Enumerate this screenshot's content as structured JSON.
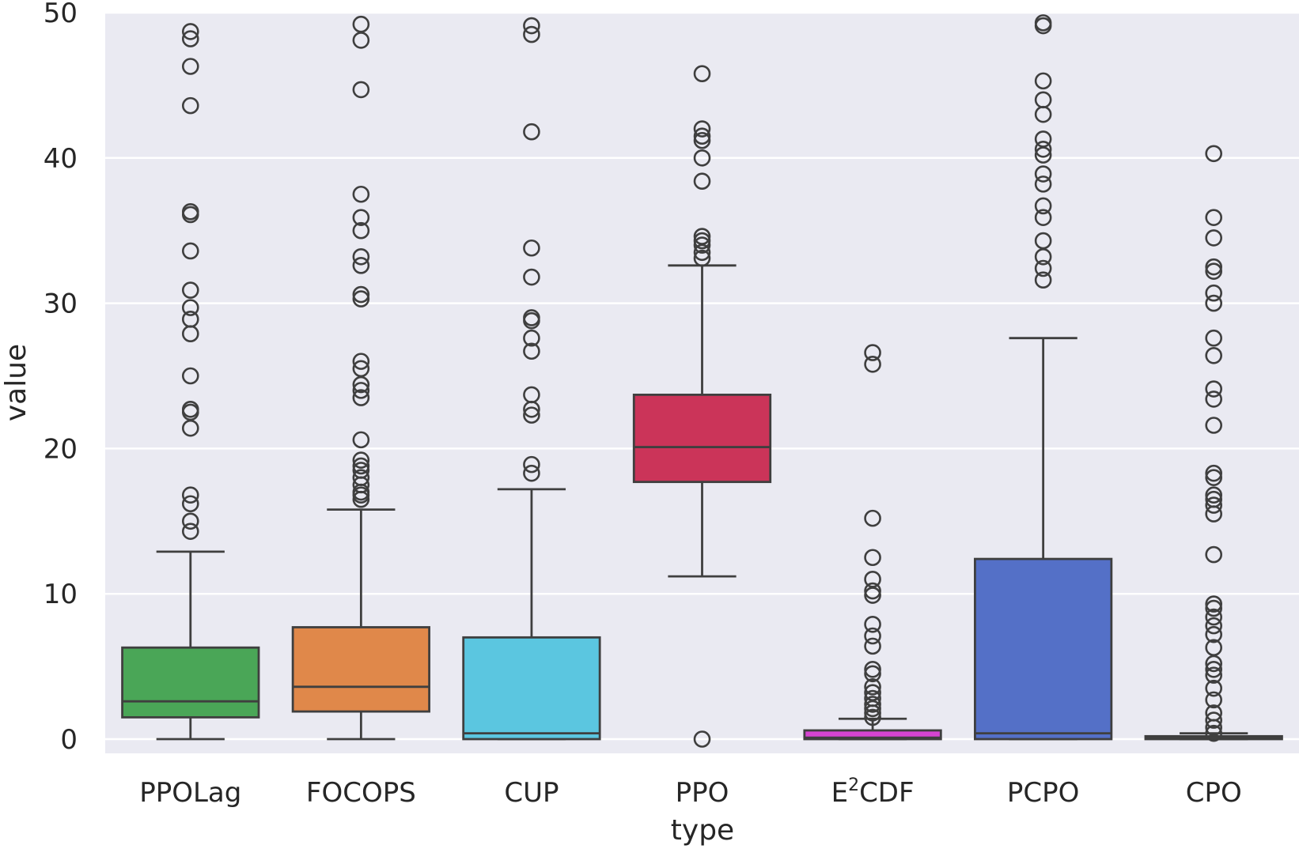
{
  "chart_data": {
    "type": "box",
    "xlabel": "type",
    "ylabel": "value",
    "ylim": [
      -1,
      50
    ],
    "yticks": [
      0,
      10,
      20,
      30,
      40,
      50
    ],
    "grid": true,
    "background": "#eaeaf2",
    "categories": [
      {
        "label": "PPOLag",
        "sup": "",
        "tail": ""
      },
      {
        "label": "FOCOPS",
        "sup": "",
        "tail": ""
      },
      {
        "label": "CUP",
        "sup": "",
        "tail": ""
      },
      {
        "label": "PPO",
        "sup": "",
        "tail": ""
      },
      {
        "label": "E",
        "sup": "2",
        "tail": "CDF"
      },
      {
        "label": "PCPO",
        "sup": "",
        "tail": ""
      },
      {
        "label": "CPO",
        "sup": "",
        "tail": ""
      }
    ],
    "series": [
      {
        "category": "PPOLag",
        "color": "#4aa657",
        "min": 0,
        "q1": 1.5,
        "median": 2.6,
        "q3": 6.3,
        "max": 12.9,
        "outliers": [
          14.3,
          15.0,
          16.2,
          16.8,
          21.4,
          22.5,
          22.7,
          25.0,
          27.9,
          28.9,
          29.7,
          30.9,
          33.6,
          36.1,
          36.3,
          43.6,
          46.3,
          48.2,
          48.7
        ]
      },
      {
        "category": "FOCOPS",
        "color": "#e0884a",
        "min": 0,
        "q1": 1.9,
        "median": 3.6,
        "q3": 7.7,
        "max": 15.8,
        "outliers": [
          16.5,
          16.8,
          17.0,
          17.5,
          18.0,
          18.5,
          18.8,
          19.2,
          20.6,
          23.5,
          24.0,
          24.4,
          25.5,
          26.0,
          30.3,
          30.6,
          32.6,
          33.2,
          35.0,
          35.9,
          37.5,
          44.7,
          48.1,
          49.2
        ]
      },
      {
        "category": "CUP",
        "color": "#5bc6e0",
        "min": 0,
        "q1": 0,
        "median": 0.4,
        "q3": 7.0,
        "max": 17.2,
        "outliers": [
          18.3,
          18.9,
          22.3,
          22.7,
          23.7,
          26.7,
          27.6,
          28.8,
          29.0,
          31.8,
          33.8,
          41.8,
          48.5,
          49.1
        ]
      },
      {
        "category": "PPO",
        "color": "#cb3459",
        "min": 11.2,
        "q1": 17.7,
        "median": 20.1,
        "q3": 23.7,
        "max": 32.6,
        "outliers": [
          0,
          33.1,
          33.5,
          34.0,
          34.3,
          34.6,
          38.4,
          40.0,
          41.2,
          41.5,
          42.0,
          45.8
        ]
      },
      {
        "category": "E2CDF",
        "color": "#d544d1",
        "min": 0,
        "q1": 0,
        "median": 0.1,
        "q3": 0.6,
        "max": 1.4,
        "outliers": [
          1.5,
          1.8,
          2.1,
          2.4,
          2.8,
          3.2,
          3.6,
          4.5,
          4.8,
          6.4,
          7.1,
          7.9,
          9.9,
          10.2,
          11.0,
          12.5,
          15.2,
          25.8,
          26.6
        ]
      },
      {
        "category": "PCPO",
        "color": "#5470c7",
        "min": 0,
        "q1": 0,
        "median": 0.4,
        "q3": 12.4,
        "max": 27.6,
        "outliers": [
          31.6,
          32.4,
          33.2,
          34.3,
          35.9,
          36.7,
          38.2,
          38.9,
          40.2,
          40.6,
          41.3,
          43.0,
          44.0,
          45.3,
          49.1,
          49.3
        ]
      },
      {
        "category": "CPO",
        "color": "#5b6b9e",
        "min": 0,
        "q1": 0,
        "median": 0.1,
        "q3": 0.2,
        "max": 0.4,
        "outliers": [
          0.4,
          0.8,
          1.3,
          1.8,
          2.7,
          3.5,
          4.4,
          4.8,
          5.2,
          6.3,
          7.2,
          7.8,
          8.4,
          9.0,
          9.3,
          12.7,
          15.5,
          16.1,
          16.5,
          16.8,
          18.0,
          18.3,
          21.6,
          23.4,
          24.1,
          26.4,
          27.6,
          30.0,
          30.7,
          32.2,
          32.5,
          34.5,
          35.9,
          40.3
        ]
      }
    ]
  }
}
